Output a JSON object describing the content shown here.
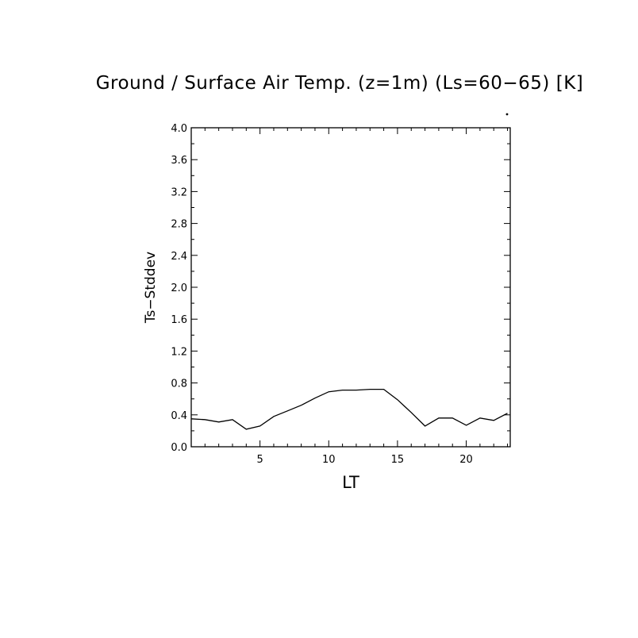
{
  "chart_data": {
    "type": "line",
    "title": "Ground / Surface Air Temp. (z=1m) (Ls=60−65) [K]",
    "xlabel": "LT",
    "ylabel": "Ts−Stddev",
    "xlim": [
      0,
      23.2
    ],
    "ylim": [
      0.0,
      4.0
    ],
    "x_ticks": [
      5,
      10,
      15,
      20
    ],
    "x_tick_labels": [
      "5",
      "10",
      "15",
      "20"
    ],
    "y_ticks": [
      0.0,
      0.4,
      0.8,
      1.2,
      1.6,
      2.0,
      2.4,
      2.8,
      3.2,
      3.6,
      4.0
    ],
    "y_tick_labels": [
      "0.0",
      "0.4",
      "0.8",
      "1.2",
      "1.6",
      "2.0",
      "2.4",
      "2.8",
      "3.2",
      "3.6",
      "4.0"
    ],
    "grid": false,
    "line_color": "#000000",
    "series": [
      {
        "x": [
          0.0,
          1.0,
          2.0,
          3.0,
          4.0,
          5.0,
          6.0,
          7.0,
          8.0,
          9.0,
          10.0,
          11.0,
          12.0,
          13.0,
          14.0,
          15.0,
          16.0,
          17.0,
          18.0,
          19.0,
          20.0,
          21.0,
          22.0,
          23.0
        ],
        "values": [
          0.35,
          0.34,
          0.31,
          0.34,
          0.22,
          0.26,
          0.38,
          0.45,
          0.52,
          0.61,
          0.69,
          0.71,
          0.71,
          0.72,
          0.72,
          0.59,
          0.43,
          0.26,
          0.36,
          0.36,
          0.27,
          0.36,
          0.33,
          0.42
        ]
      }
    ]
  }
}
